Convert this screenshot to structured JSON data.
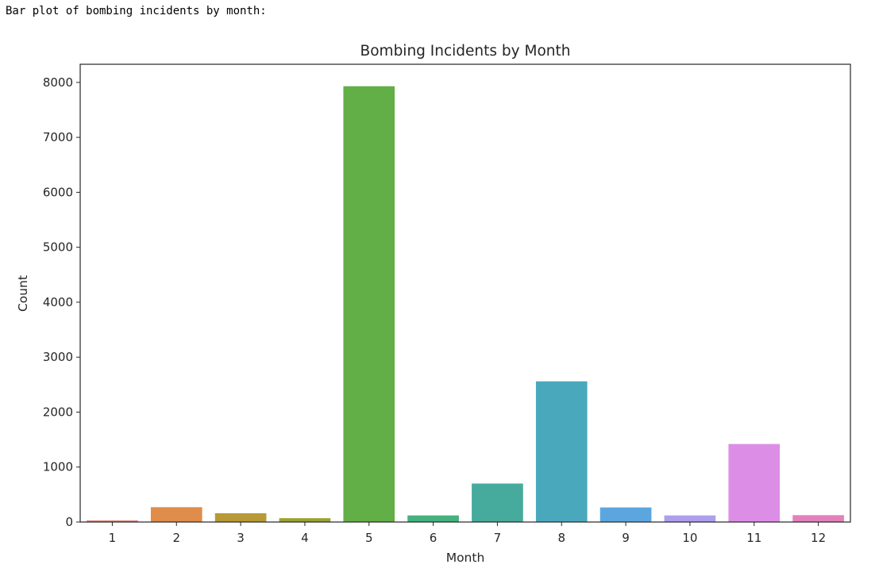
{
  "output_text": "Bar plot of bombing incidents by month:",
  "chart_data": {
    "type": "bar",
    "title": "Bombing Incidents by Month",
    "xlabel": "Month",
    "ylabel": "Count",
    "categories": [
      "1",
      "2",
      "3",
      "4",
      "5",
      "6",
      "7",
      "8",
      "9",
      "10",
      "11",
      "12"
    ],
    "values": [
      30,
      270,
      160,
      70,
      7930,
      120,
      700,
      2560,
      265,
      120,
      1420,
      125
    ],
    "colors": [
      "#e1827a",
      "#e08c4a",
      "#b79935",
      "#9aa333",
      "#62ae47",
      "#45b17f",
      "#46ab9c",
      "#4aa8bd",
      "#5ca6e0",
      "#ae9eed",
      "#dc8ee6",
      "#e281bb"
    ],
    "yticks": [
      0,
      1000,
      2000,
      3000,
      4000,
      5000,
      6000,
      7000,
      8000
    ],
    "ylim": [
      0,
      8330
    ],
    "grid": false,
    "legend": false
  }
}
